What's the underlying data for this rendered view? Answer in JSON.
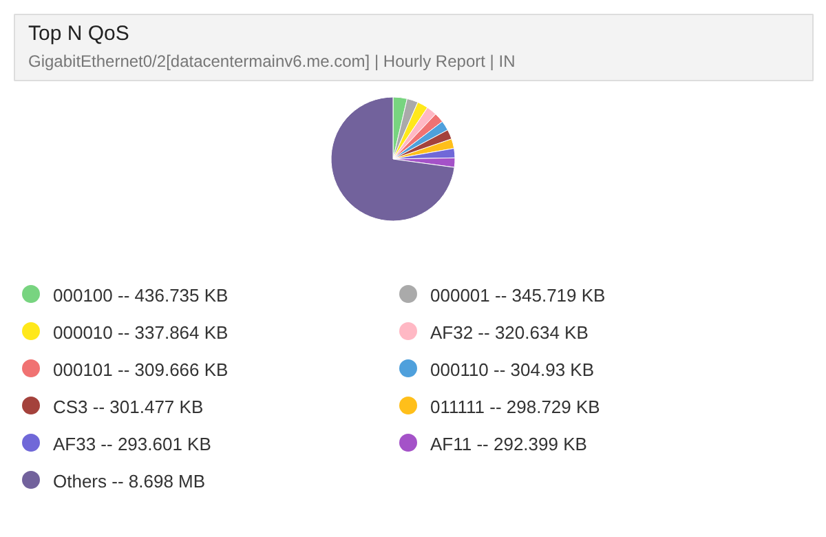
{
  "chart_data": {
    "type": "pie",
    "title": "Top N QoS",
    "subtitle": "GigabitEthernet0/2[datacentermainv6.me.com] | Hourly Report | IN",
    "categories": [
      "000100 -- 436.735 KB",
      "000001 -- 345.719 KB",
      "000010 -- 337.864 KB",
      "AF32 -- 320.634 KB",
      "000101 -- 309.666 KB",
      "000110 -- 304.93 KB",
      "CS3 -- 301.477 KB",
      "011111 -- 298.729 KB",
      "AF33 -- 293.601 KB",
      "AF11 -- 292.399 KB",
      "Others -- 8.698 MB"
    ],
    "values": [
      3.658,
      2.896,
      2.83,
      2.685,
      2.594,
      2.554,
      2.525,
      2.502,
      2.459,
      2.449,
      72.848
    ],
    "colors": [
      "#78d480",
      "#aaaaaa",
      "#ffe81a",
      "#ffb8c4",
      "#f07272",
      "#4fa0dc",
      "#a4423c",
      "#ffbf1a",
      "#7068d8",
      "#a452c8",
      "#72629c"
    ],
    "legend": "bottom"
  }
}
